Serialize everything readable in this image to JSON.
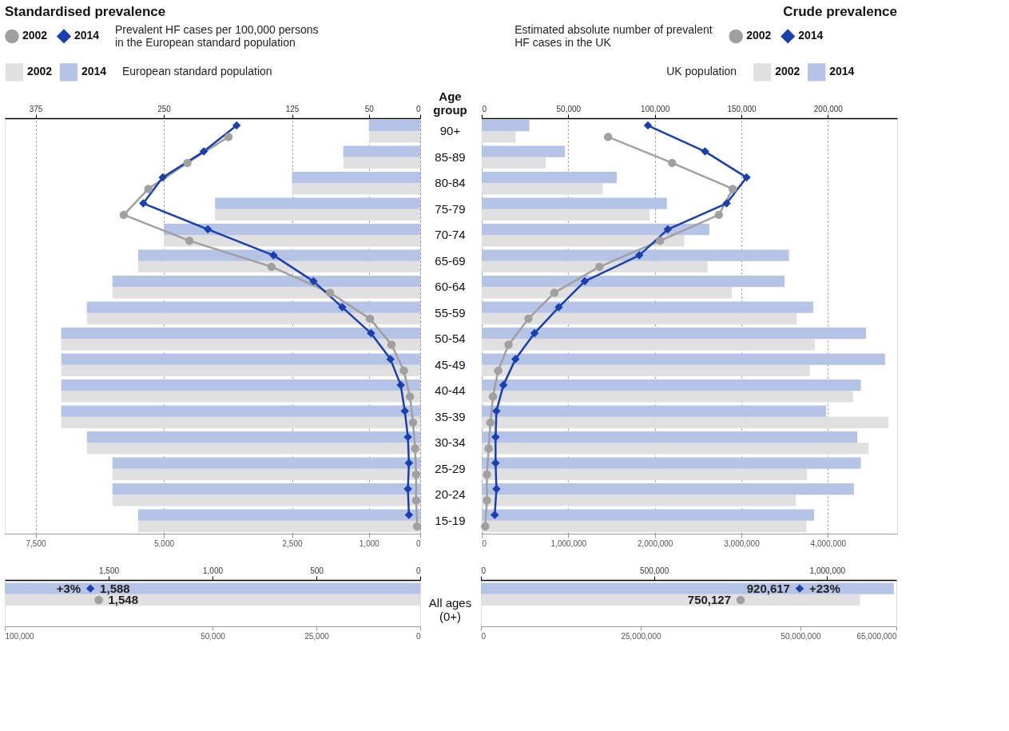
{
  "chart_data": [
    {
      "type": "bar",
      "orientation": "horizontal",
      "title": "Standardised prevalence",
      "ylabel": "Age group",
      "legend": "top left",
      "grid": "x",
      "categories": [
        "90+",
        "85-89",
        "80-84",
        "75-79",
        "70-74",
        "65-69",
        "60-64",
        "55-59",
        "50-54",
        "45-49",
        "40-44",
        "35-39",
        "30-34",
        "25-29",
        "20-24",
        "15-19"
      ],
      "series": [
        {
          "name": "2002",
          "color": "#e0e0e0",
          "values": [
            1000,
            1500,
            2500,
            4000,
            5000,
            5500,
            6000,
            6500,
            7000,
            7000,
            7000,
            7000,
            6500,
            6000,
            6000,
            5500
          ]
        },
        {
          "name": "2014",
          "color": "#b4c3e6",
          "values": [
            1000,
            1500,
            2500,
            4000,
            5000,
            5500,
            6000,
            6500,
            7000,
            7000,
            7000,
            7000,
            6500,
            6000,
            6000,
            5500
          ]
        },
        {
          "name": "2002",
          "type": "line",
          "axis": "x2",
          "marker": "circle",
          "color": "#a0a0a0",
          "values": [
            187,
            227,
            265,
            289,
            225,
            145,
            88,
            49,
            28,
            16,
            10,
            7,
            5,
            4,
            4,
            3
          ]
        },
        {
          "name": "2014",
          "type": "line",
          "axis": "x2",
          "marker": "diamond",
          "color": "#1a3fae",
          "values": [
            179,
            211,
            251,
            270,
            207,
            143,
            104,
            76,
            48,
            29,
            19,
            15,
            12,
            11,
            12,
            11
          ]
        }
      ],
      "xlim": [
        8100,
        0
      ],
      "xticks": [
        {
          "value": 7500,
          "label": "7,500"
        },
        {
          "value": 5000,
          "label": "5,000"
        },
        {
          "value": 2500,
          "label": "2,500"
        },
        {
          "value": 1000,
          "label": "1,000"
        },
        0
      ],
      "x2lim": [
        405,
        0
      ],
      "x2ticks": [
        375,
        250,
        125,
        50,
        0
      ],
      "annotations": [
        "Prevalent HF cases per 100,000 persons in the European standard population",
        "European standard population"
      ]
    },
    {
      "type": "bar",
      "orientation": "horizontal",
      "title": "Crude prevalence",
      "legend": "top right",
      "grid": "x",
      "tick_labels": "x",
      "categories": [
        "90+",
        "85-89",
        "80-84",
        "75-79",
        "70-74",
        "65-69",
        "60-64",
        "55-59",
        "50-54",
        "45-49",
        "40-44",
        "35-39",
        "30-34",
        "25-29",
        "20-24",
        "15-19"
      ],
      "series": [
        {
          "name": "2002",
          "color": "#e0e0e0",
          "values": [
            390000,
            740000,
            1400000,
            1940000,
            2340000,
            2610000,
            2890000,
            3640000,
            3850000,
            3790000,
            4290000,
            4700000,
            4470000,
            3760000,
            3630000,
            3750000
          ]
        },
        {
          "name": "2014",
          "color": "#b4c3e6",
          "values": [
            550000,
            960000,
            1560000,
            2140000,
            2630000,
            3550000,
            3500000,
            3830000,
            4440000,
            4660000,
            4380000,
            3980000,
            4340000,
            4380000,
            4300000,
            3840000
          ]
        },
        {
          "name": "2002",
          "type": "line",
          "axis": "x2",
          "marker": "circle",
          "color": "#a0a0a0",
          "values": [
            73000,
            110000,
            145000,
            137000,
            103000,
            68000,
            42000,
            27000,
            15500,
            9500,
            6500,
            5000,
            4000,
            3000,
            3000,
            2000
          ]
        },
        {
          "name": "2014",
          "type": "line",
          "axis": "x2",
          "marker": "diamond",
          "color": "#1a3fae",
          "values": [
            96000,
            129000,
            153000,
            141500,
            107500,
            91000,
            59500,
            44500,
            30500,
            19500,
            12500,
            8500,
            8000,
            8000,
            8500,
            7500
          ]
        }
      ],
      "xlim": [
        0,
        4800000
      ],
      "xticks": [
        0,
        {
          "value": 1000000,
          "label": "1,000,000"
        },
        {
          "value": 2000000,
          "label": "2,000,000"
        },
        {
          "value": 3000000,
          "label": "3,000,000"
        },
        {
          "value": 4000000,
          "label": "4,000,000"
        }
      ],
      "x2lim": [
        0,
        240000
      ],
      "x2ticks": [
        0,
        {
          "value": 50000,
          "label": "50,000"
        },
        {
          "value": 100000,
          "label": "100,000"
        },
        {
          "value": 150000,
          "label": "150,000"
        },
        {
          "value": 200000,
          "label": "200,000"
        }
      ],
      "annotations": [
        "Estimated absolute number of prevalent HF cases in the UK",
        "UK population"
      ]
    },
    {
      "type": "bar",
      "orientation": "horizontal",
      "categories": [
        "All ages (0+)"
      ],
      "series": [
        {
          "color": "#e0e0e0",
          "values": [
            100000
          ]
        },
        {
          "color": "#b4c3e6",
          "values": [
            100000
          ]
        },
        {
          "type": "scatter",
          "axis": "x2",
          "marker": "circle",
          "color": "#a0a0a0",
          "values": [
            1548
          ],
          "value_labels": [
            "1,548"
          ]
        },
        {
          "type": "scatter",
          "axis": "x2",
          "marker": "diamond",
          "color": "#1a3fae",
          "values": [
            1588
          ],
          "value_labels": [
            "1,588"
          ]
        }
      ],
      "xlim": [
        100000,
        0
      ],
      "xticks": [
        {
          "value": 100000,
          "label": "100,000"
        },
        {
          "value": 50000,
          "label": "50,000"
        },
        {
          "value": 25000,
          "label": "25,000"
        },
        0
      ],
      "x2lim": [
        2000,
        0
      ],
      "x2ticks": [
        {
          "value": 1500,
          "label": "1,500"
        },
        {
          "value": 1000,
          "label": "1,000"
        },
        500,
        0
      ],
      "annotations": [
        "+3%"
      ]
    },
    {
      "type": "bar",
      "orientation": "horizontal",
      "tick_labels": "x",
      "categories": [
        "All ages (0+)"
      ],
      "series": [
        {
          "color": "#e0e0e0",
          "values": [
            59300000
          ]
        },
        {
          "color": "#b4c3e6",
          "values": [
            64600000
          ]
        },
        {
          "type": "scatter",
          "axis": "x2",
          "marker": "circle",
          "color": "#a0a0a0",
          "values": [
            750127
          ],
          "value_labels": [
            "750,127"
          ]
        },
        {
          "type": "scatter",
          "axis": "x2",
          "marker": "diamond",
          "color": "#1a3fae",
          "values": [
            920617
          ],
          "value_labels": [
            "920,617"
          ]
        }
      ],
      "xlim": [
        0,
        65000000
      ],
      "xticks": [
        0,
        {
          "value": 25000000,
          "label": "25,000,000"
        },
        {
          "value": 50000000,
          "label": "50,000,000"
        },
        {
          "value": 65000000,
          "label": "65,000,000"
        }
      ],
      "x2lim": [
        0,
        1200000
      ],
      "x2ticks": [
        0,
        {
          "value": 500000,
          "label": "500,000"
        },
        {
          "value": 1000000,
          "label": "1,000,000"
        }
      ],
      "annotations": [
        "+23%"
      ]
    }
  ]
}
